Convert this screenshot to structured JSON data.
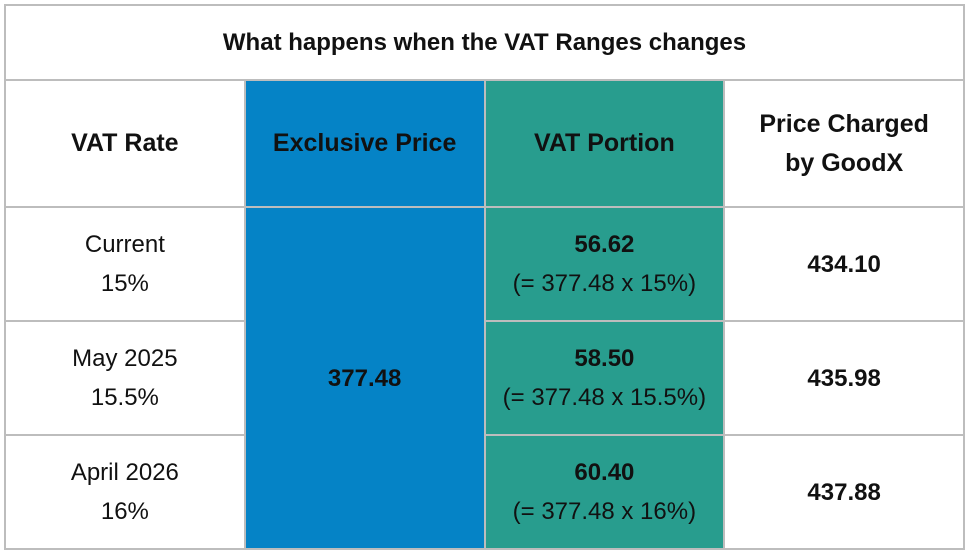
{
  "title": "What happens when the VAT Ranges changes",
  "colors": {
    "exclusive_bg": "#0583c6",
    "vat_bg": "#289d8e",
    "border": "#bdbdbd"
  },
  "headers": {
    "vat_rate": "VAT Rate",
    "exclusive_price": "Exclusive Price",
    "vat_portion": "VAT Portion",
    "price_charged_line1": "Price Charged",
    "price_charged_line2": "by GoodX"
  },
  "exclusive_price": "377.48",
  "rows": [
    {
      "rate_label": "Current",
      "rate": "15%",
      "vat_amount": "56.62",
      "vat_formula": "(= 377.48 x 15%)",
      "charged": "434.10"
    },
    {
      "rate_label": "May 2025",
      "rate": "15.5%",
      "vat_amount": "58.50",
      "vat_formula": "(= 377.48 x 15.5%)",
      "charged": "435.98"
    },
    {
      "rate_label": "April 2026",
      "rate": "16%",
      "vat_amount": "60.40",
      "vat_formula": "(= 377.48 x 16%)",
      "charged": "437.88"
    }
  ]
}
